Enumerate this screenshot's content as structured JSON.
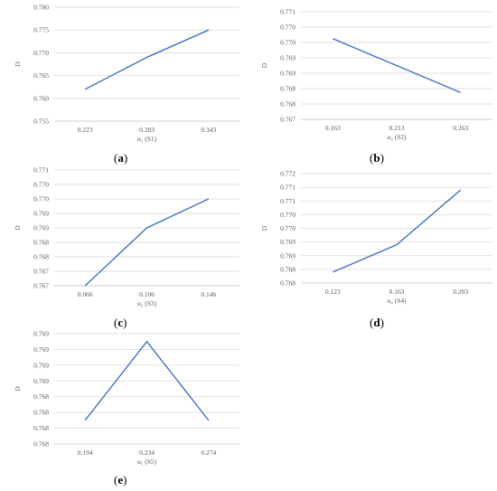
{
  "colors": {
    "series": "#4472c4",
    "grid": "#d9d9d9",
    "tick_text": "#595959"
  },
  "chart_data": [
    {
      "id": "a",
      "caption_open": "(",
      "caption_letter": "a",
      "caption_close": ")",
      "type": "line",
      "xlabel": "α₁ (S1)",
      "ylabel": "D",
      "categories": [
        "0.223",
        "0.283",
        "0.343"
      ],
      "values": [
        0.762,
        0.769,
        0.775
      ],
      "ylim": [
        0.755,
        0.78
      ],
      "yticks": [
        "0.755",
        "0.760",
        "0.765",
        "0.770",
        "0.775",
        "0.780"
      ],
      "grid": true
    },
    {
      "id": "b",
      "caption_open": "(",
      "caption_letter": "b",
      "caption_close": ")",
      "type": "line",
      "xlabel": "α₂ (S2)",
      "ylabel": "D",
      "categories": [
        "0.163",
        "0.213",
        "0.263"
      ],
      "values": [
        0.77,
        0.769,
        0.768
      ],
      "ylim": [
        0.767,
        0.771
      ],
      "yticks": [
        "0.767",
        "0.768",
        "0.768",
        "0.769",
        "0.769",
        "0.770",
        "0.770",
        "0.771"
      ],
      "grid": true
    },
    {
      "id": "c",
      "caption_open": "(",
      "caption_letter": "c",
      "caption_close": ")",
      "type": "line",
      "xlabel": "α₃ (S3)",
      "ylabel": "D",
      "categories": [
        "0.066",
        "0.106",
        "0.146"
      ],
      "values": [
        0.767,
        0.769,
        0.77
      ],
      "ylim": [
        0.767,
        0.771
      ],
      "yticks": [
        "0.767",
        "0.767",
        "0.768",
        "0.768",
        "0.769",
        "0.769",
        "0.770",
        "0.770",
        "0.771"
      ],
      "grid": true
    },
    {
      "id": "d",
      "caption_open": "(",
      "caption_letter": "d",
      "caption_close": ")",
      "type": "line",
      "xlabel": "α₄ (S4)",
      "ylabel": "D",
      "categories": [
        "0.123",
        "0.163",
        "0.203"
      ],
      "values": [
        0.7684,
        0.7694,
        0.7714
      ],
      "ylim": [
        0.768,
        0.772
      ],
      "yticks": [
        "0.768",
        "0.768",
        "0.769",
        "0.769",
        "0.770",
        "0.770",
        "0.771",
        "0.771",
        "0.772"
      ],
      "grid": true
    },
    {
      "id": "e",
      "caption_open": "(",
      "caption_letter": "e",
      "caption_close": ")",
      "type": "line",
      "xlabel": "α₅ (S5)",
      "ylabel": "D",
      "categories": [
        "0.194",
        "0.234",
        "0.274"
      ],
      "values": [
        0.7681,
        0.7691,
        0.7681
      ],
      "ylim": [
        0.7678,
        0.7692
      ],
      "yticks": [
        "0.768",
        "0.768",
        "0.768",
        "0.768",
        "0.769",
        "0.769",
        "0.769",
        "0.769"
      ],
      "grid": true
    }
  ]
}
